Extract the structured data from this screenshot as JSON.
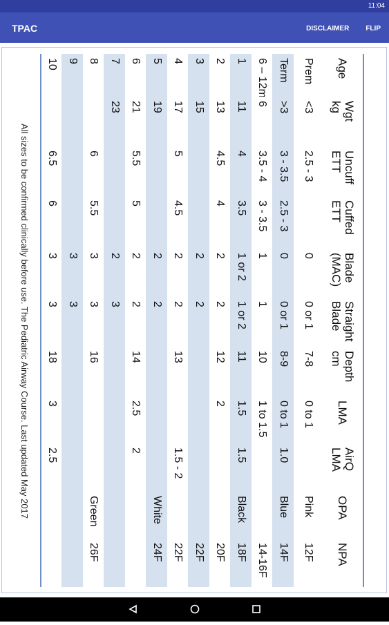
{
  "status_bar": {
    "time": "11:04"
  },
  "app_bar": {
    "title": "TPAC",
    "actions": [
      "DISCLAIMER",
      "FLIP"
    ]
  },
  "table": {
    "header": [
      [
        "Age"
      ],
      [
        "Wgt",
        "kg"
      ],
      [
        "Uncuff",
        "ETT"
      ],
      [
        "Cuffed",
        "ETT"
      ],
      [
        "Blade",
        "(MAC)"
      ],
      [
        "Straight",
        "Blade"
      ],
      [
        "Depth",
        "cm"
      ],
      [
        "LMA"
      ],
      [
        "AirQ",
        "LMA"
      ],
      [
        "OPA"
      ],
      [
        "NPA"
      ]
    ],
    "rows": [
      [
        "Prem",
        "<3",
        "2.5 - 3",
        null,
        "0",
        "0 or 1",
        "7-8",
        "0 to 1",
        null,
        "Pink",
        "12F"
      ],
      [
        "Term",
        ">3",
        "3 - 3.5",
        "2.5 - 3",
        "0",
        "0 or 1",
        "8-9",
        "0 to 1",
        "1.0",
        "Blue",
        "14F"
      ],
      [
        "6 – 12mo",
        "6",
        "3.5 - 4",
        "3 - 3.5",
        "1",
        "1",
        "10",
        "1 to 1.5",
        null,
        null,
        "14-16F"
      ],
      [
        "1",
        "11",
        "4",
        "3.5",
        "1 or 2",
        "1 or 2",
        "11",
        "1.5",
        "1.5",
        "Black",
        "18F"
      ],
      [
        "2",
        "13",
        "4.5",
        "4",
        "2",
        "2",
        "12",
        "2",
        null,
        null,
        "20F"
      ],
      [
        "3",
        "15",
        null,
        null,
        "2",
        "2",
        null,
        null,
        null,
        null,
        "22F"
      ],
      [
        "4",
        "17",
        "5",
        "4.5",
        "2",
        "2",
        "13",
        null,
        "1.5 - 2",
        null,
        "22F"
      ],
      [
        "5",
        "19",
        null,
        null,
        "2",
        "2",
        null,
        null,
        null,
        "White",
        "24F"
      ],
      [
        "6",
        "21",
        "5.5",
        "5",
        "2",
        "2",
        "14",
        "2.5",
        "2",
        null,
        null
      ],
      [
        "7",
        "23",
        null,
        null,
        "2",
        "3",
        null,
        null,
        null,
        null,
        null
      ],
      [
        "8",
        null,
        "6",
        "5.5",
        "3",
        "3",
        "16",
        null,
        null,
        "Green",
        "26F"
      ],
      [
        "9",
        null,
        null,
        null,
        "3",
        "3",
        null,
        null,
        null,
        null,
        null
      ],
      [
        "10",
        null,
        "6.5",
        "6",
        "3",
        "3",
        "18",
        "3",
        "2.5",
        null,
        null
      ]
    ]
  },
  "footer": "All sizes to be confirmed clinically before use. The Pediatric Airway Course. Last updated May 2017"
}
